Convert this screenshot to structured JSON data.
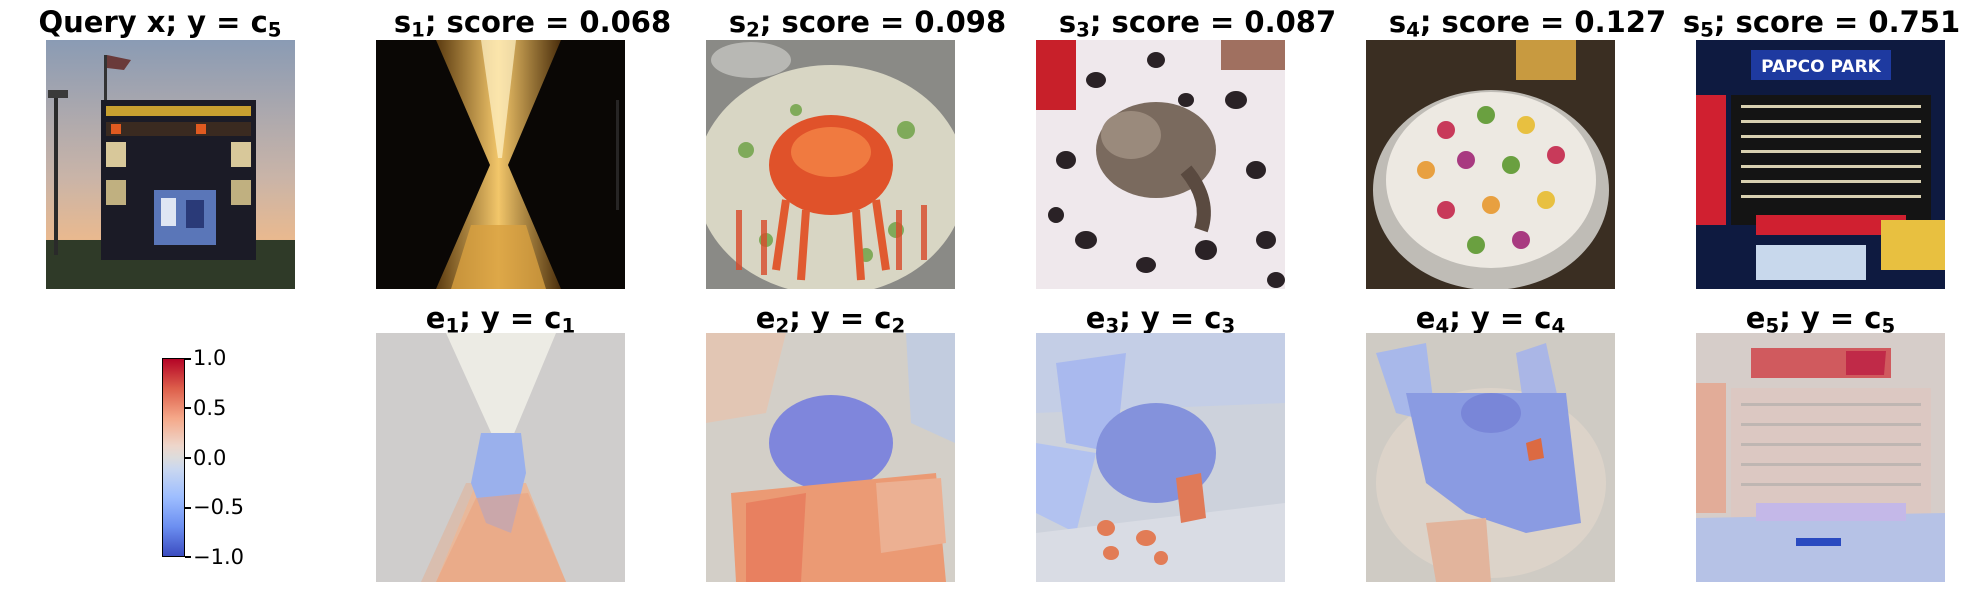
{
  "query": {
    "title_prefix": "Query x; y = c",
    "title_sub": "5"
  },
  "samples": [
    {
      "label": "s",
      "index": "1",
      "score_text": "; score = 0.068",
      "score": 0.068
    },
    {
      "label": "s",
      "index": "2",
      "score_text": "; score = 0.098",
      "score": 0.098
    },
    {
      "label": "s",
      "index": "3",
      "score_text": "; score = 0.087",
      "score": 0.087
    },
    {
      "label": "s",
      "index": "4",
      "score_text": "; score = 0.127",
      "score": 0.127
    },
    {
      "label": "s",
      "index": "5",
      "score_text": "; score = 0.751",
      "score": 0.751
    }
  ],
  "explanations": [
    {
      "label": "e",
      "index": "1",
      "mid": "; y = c",
      "class": "1"
    },
    {
      "label": "e",
      "index": "2",
      "mid": "; y = c",
      "class": "2"
    },
    {
      "label": "e",
      "index": "3",
      "mid": "; y = c",
      "class": "3"
    },
    {
      "label": "e",
      "index": "4",
      "mid": "; y = c",
      "class": "4"
    },
    {
      "label": "e",
      "index": "5",
      "mid": "; y = c",
      "class": "5"
    }
  ],
  "images": {
    "query": "stadium scoreboard at dusk",
    "s1": "hourglass with golden sand",
    "s2": "crab on salad platter",
    "s3": "ferret on dotted blanket",
    "s4": "decorated cake",
    "s5": "scoreboard sign PAPCO PARK",
    "s5_sign_text": "PAPCO PARK"
  },
  "colorbar": {
    "ticks": [
      "1.0",
      "0.5",
      "0.0",
      "−0.5",
      "−1.0"
    ],
    "colormap": "coolwarm",
    "colors": {
      "high": "#b40426",
      "mid": "#dddcdc",
      "low": "#3b4cc0"
    }
  }
}
